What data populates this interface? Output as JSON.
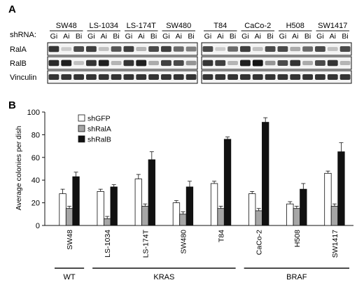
{
  "panel_a": {
    "label": "A",
    "shrna_label": "shRNA:",
    "lane_labels": [
      "Gi",
      "Ai",
      "Bi"
    ],
    "cell_lines_left": [
      "SW48",
      "LS-1034",
      "LS-174T",
      "SW480"
    ],
    "cell_lines_right": [
      "T84",
      "CaCo-2",
      "H508",
      "SW1417"
    ],
    "rows": [
      "RalA",
      "RalB",
      "Vinculin"
    ],
    "band_intensity": {
      "RalA": [
        [
          0.85,
          0.15,
          0.75
        ],
        [
          0.8,
          0.2,
          0.7
        ],
        [
          0.8,
          0.25,
          0.75
        ],
        [
          0.8,
          0.6,
          0.5
        ],
        [
          0.75,
          0.15,
          0.6
        ],
        [
          0.8,
          0.2,
          0.75
        ],
        [
          0.75,
          0.3,
          0.6
        ],
        [
          0.75,
          0.2,
          0.75
        ]
      ],
      "RalB": [
        [
          0.9,
          0.95,
          0.2
        ],
        [
          0.85,
          0.95,
          0.25
        ],
        [
          0.85,
          0.95,
          0.3
        ],
        [
          0.8,
          0.75,
          0.4
        ],
        [
          0.85,
          0.8,
          0.25
        ],
        [
          0.95,
          1.0,
          0.4
        ],
        [
          0.75,
          0.85,
          0.3
        ],
        [
          0.75,
          0.85,
          0.25
        ]
      ],
      "Vinculin": [
        [
          0.85,
          0.85,
          0.85
        ],
        [
          0.85,
          0.85,
          0.85
        ],
        [
          0.85,
          0.85,
          0.85
        ],
        [
          0.85,
          0.85,
          0.85
        ],
        [
          0.85,
          0.85,
          0.85
        ],
        [
          0.85,
          0.85,
          0.85
        ],
        [
          0.85,
          0.85,
          0.85
        ],
        [
          0.85,
          0.85,
          0.85
        ]
      ]
    }
  },
  "panel_b": {
    "label": "B",
    "genotype_groups": [
      {
        "label": "WT",
        "members": [
          "SW48"
        ]
      },
      {
        "label": "KRAS",
        "members": [
          "LS-1034",
          "LS-174T",
          "SW480",
          "T84"
        ]
      },
      {
        "label": "BRAF",
        "members": [
          "CaCo-2",
          "H508",
          "SW1417"
        ]
      }
    ]
  },
  "chart_data": {
    "type": "bar",
    "title": "",
    "xlabel": "",
    "ylabel": "Average colonies per dish",
    "ylim": [
      0,
      100
    ],
    "yticks": [
      0,
      20,
      40,
      60,
      80,
      100
    ],
    "categories": [
      "SW48",
      "LS-1034",
      "LS-174T",
      "SW480",
      "T84",
      "CaCo-2",
      "H508",
      "SW1417"
    ],
    "series": [
      {
        "name": "shGFP",
        "color": "#ffffff",
        "values": [
          28,
          30,
          41,
          20,
          37,
          28,
          19,
          46
        ],
        "errors": [
          4,
          2,
          4,
          2,
          2,
          2,
          2,
          2
        ]
      },
      {
        "name": "shRalA",
        "color": "#a6a6a6",
        "values": [
          15,
          6,
          17,
          10,
          15,
          13,
          15,
          17
        ],
        "errors": [
          2,
          2,
          2,
          2,
          2,
          2,
          2,
          2
        ]
      },
      {
        "name": "shRalB",
        "color": "#111111",
        "values": [
          43,
          34,
          58,
          34,
          76,
          91,
          32,
          65
        ],
        "errors": [
          4,
          2,
          7,
          5,
          2,
          4,
          5,
          8
        ]
      }
    ],
    "legend_position": "top-left",
    "grid": false
  }
}
